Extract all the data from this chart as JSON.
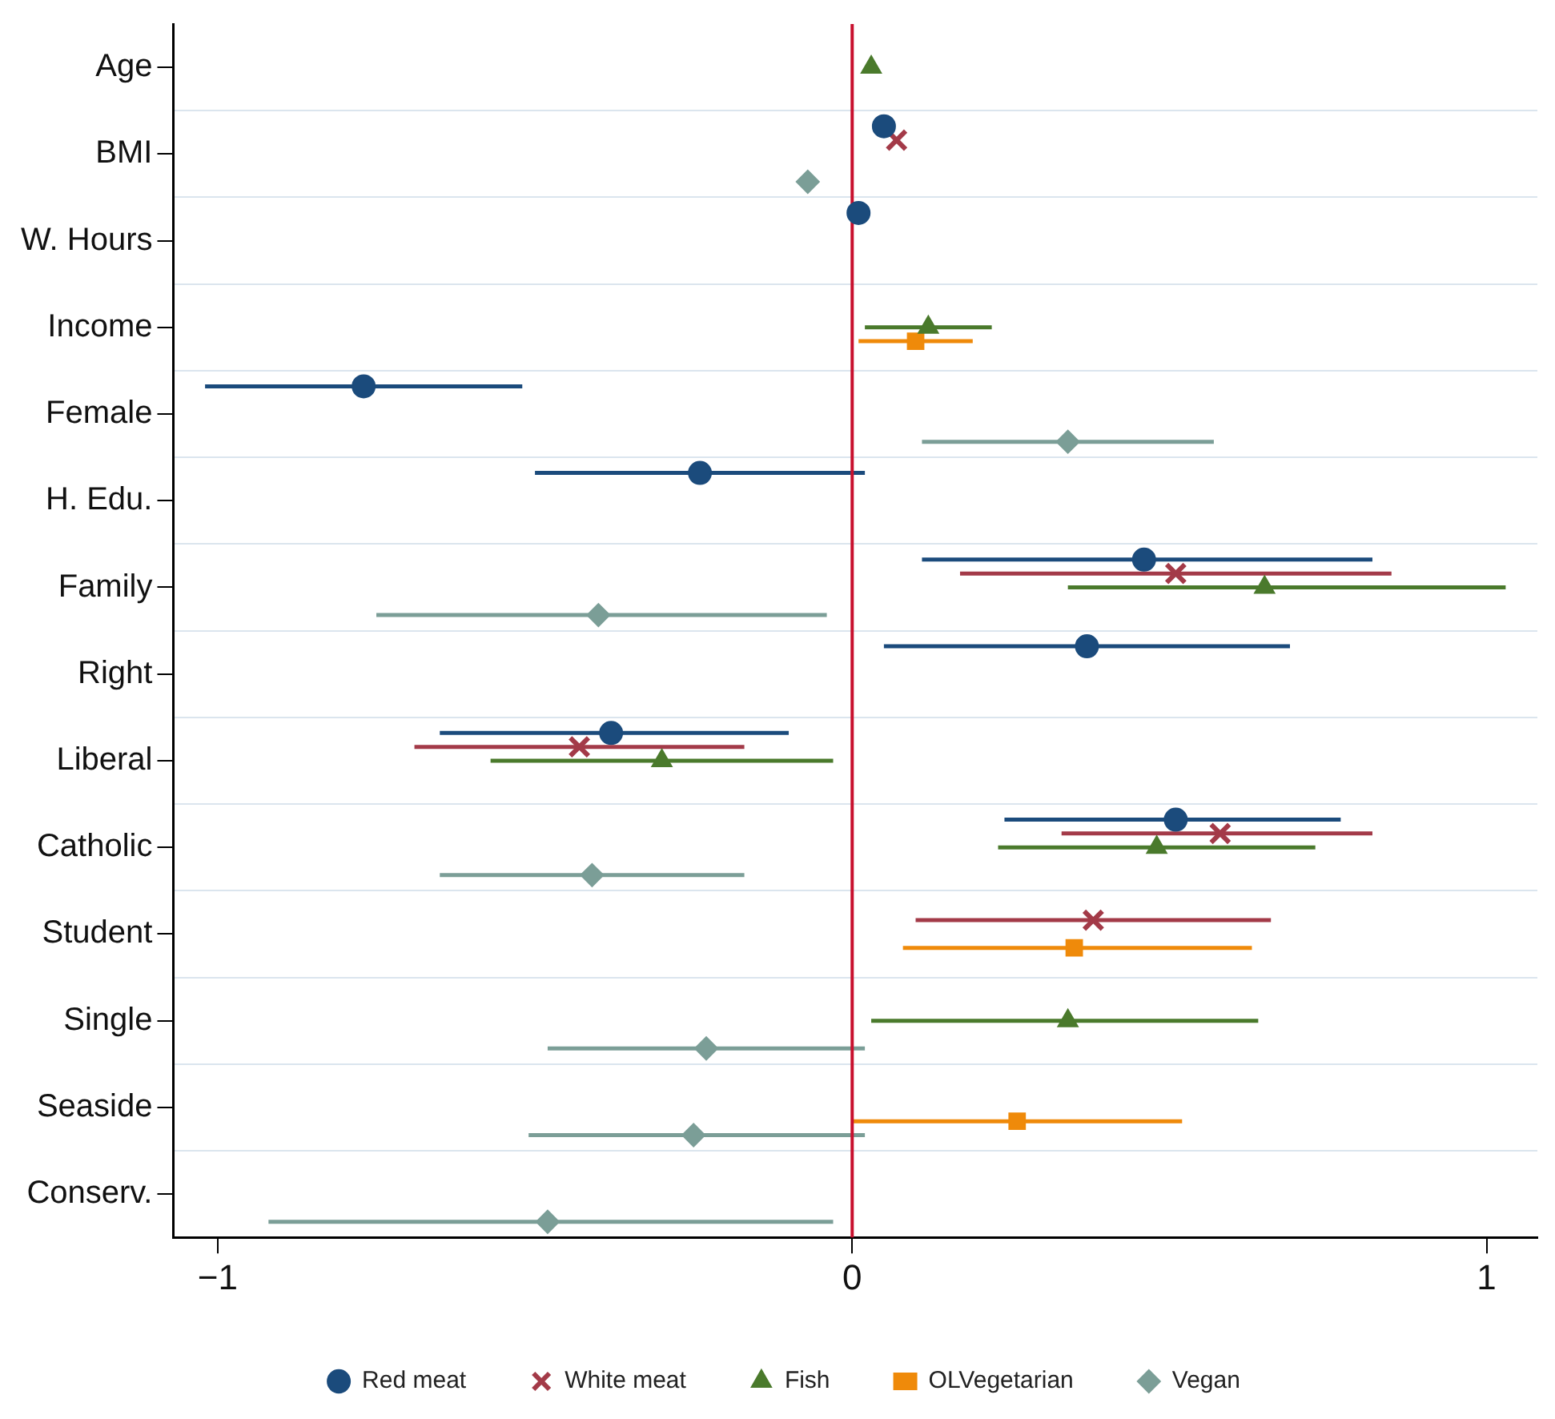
{
  "chart_data": {
    "type": "scatter",
    "categories": [
      "Age",
      "BMI",
      "W. Hours",
      "Income",
      "Female",
      "H. Edu.",
      "Family",
      "Right",
      "Liberal",
      "Catholic",
      "Student",
      "Single",
      "Seaside",
      "Conserv."
    ],
    "series": [
      {
        "name": "Red meat",
        "color": "#1b4b7c",
        "marker": "circle",
        "values": [
          null,
          0.05,
          0.01,
          null,
          -0.77,
          -0.24,
          0.46,
          0.37,
          -0.38,
          0.51,
          null,
          null,
          null,
          null
        ],
        "errors": [
          null,
          null,
          null,
          null,
          [
            -1.02,
            -0.52
          ],
          [
            -0.5,
            0.02
          ],
          [
            0.11,
            0.82
          ],
          [
            0.05,
            0.69
          ],
          [
            -0.65,
            -0.1
          ],
          [
            0.24,
            0.77
          ],
          null,
          null,
          null,
          null
        ]
      },
      {
        "name": "White meat",
        "color": "#a33a48",
        "marker": "cross",
        "values": [
          null,
          0.07,
          null,
          null,
          null,
          null,
          0.51,
          null,
          -0.43,
          0.58,
          0.38,
          null,
          null,
          null
        ],
        "errors": [
          null,
          null,
          null,
          null,
          null,
          null,
          [
            0.17,
            0.85
          ],
          null,
          [
            -0.69,
            -0.17
          ],
          [
            0.33,
            0.82
          ],
          [
            0.1,
            0.66
          ],
          null,
          null,
          null
        ]
      },
      {
        "name": "Fish",
        "color": "#4a7a2c",
        "marker": "triangle",
        "values": [
          0.03,
          null,
          null,
          0.12,
          null,
          null,
          0.65,
          null,
          -0.3,
          0.48,
          null,
          0.34,
          null,
          null
        ],
        "errors": [
          null,
          null,
          null,
          [
            0.02,
            0.22
          ],
          null,
          null,
          [
            0.34,
            1.03
          ],
          null,
          [
            -0.57,
            -0.03
          ],
          [
            0.23,
            0.73
          ],
          null,
          [
            0.03,
            0.64
          ],
          null,
          null
        ]
      },
      {
        "name": "OLVegetarian",
        "color": "#ef8a0a",
        "marker": "square",
        "values": [
          null,
          null,
          null,
          0.1,
          null,
          null,
          null,
          null,
          null,
          null,
          0.35,
          null,
          0.26,
          null
        ],
        "errors": [
          null,
          null,
          null,
          [
            0.01,
            0.19
          ],
          null,
          null,
          null,
          null,
          null,
          null,
          [
            0.08,
            0.63
          ],
          null,
          [
            0,
            0.52
          ],
          null
        ]
      },
      {
        "name": "Vegan",
        "color": "#7b9e97",
        "marker": "diamond",
        "values": [
          null,
          -0.07,
          null,
          null,
          0.34,
          null,
          -0.4,
          null,
          null,
          -0.41,
          null,
          -0.23,
          -0.25,
          -0.48
        ],
        "errors": [
          null,
          null,
          null,
          null,
          [
            0.11,
            0.57
          ],
          null,
          [
            -0.75,
            -0.04
          ],
          null,
          null,
          [
            -0.65,
            -0.17
          ],
          null,
          [
            -0.48,
            0.02
          ],
          [
            -0.51,
            0.02
          ],
          [
            -0.92,
            -0.03
          ]
        ]
      }
    ],
    "xlim": [
      -1.07,
      1.08
    ],
    "xticks": [
      {
        "value": -1,
        "label": "−1"
      },
      0,
      1
    ],
    "ref_lines": [
      {
        "axis": "x",
        "value": 0,
        "color": "#c8102e"
      }
    ],
    "orientation": "horizontal",
    "grid": "y",
    "legend": "bottom"
  }
}
